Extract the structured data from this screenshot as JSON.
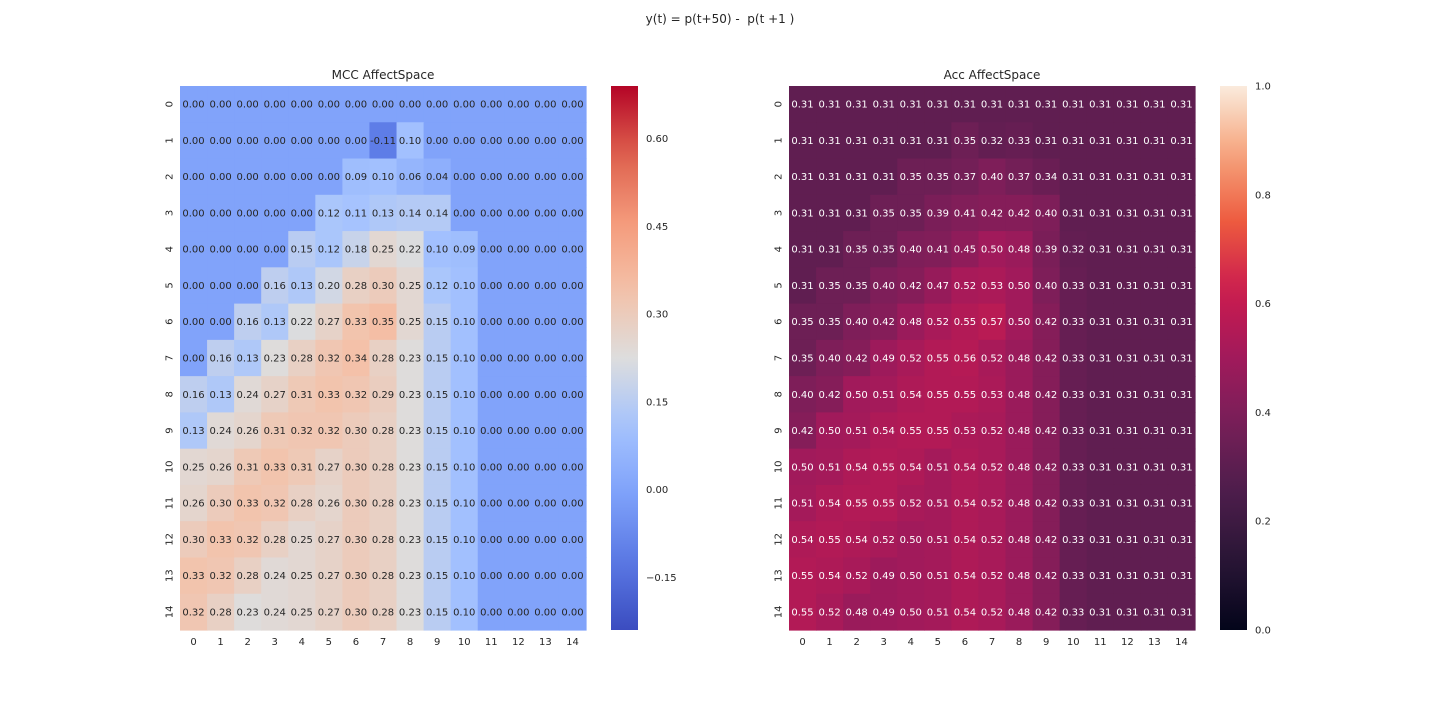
{
  "figure": {
    "suptitle": "y(t) = p(t+50) -  p(t +1 )"
  },
  "chart_data": [
    {
      "type": "heatmap",
      "title": "MCC AffectSpace",
      "xlabel": "",
      "ylabel": "",
      "colormap": "coolwarm",
      "vmin": -0.24,
      "vmax": 0.69,
      "x_tick_labels": [
        "0",
        "1",
        "2",
        "3",
        "4",
        "5",
        "6",
        "7",
        "8",
        "9",
        "10",
        "11",
        "12",
        "13",
        "14"
      ],
      "y_tick_labels": [
        "0",
        "1",
        "2",
        "3",
        "4",
        "5",
        "6",
        "7",
        "8",
        "9",
        "10",
        "11",
        "12",
        "13",
        "14"
      ],
      "colorbar_ticks": [
        -0.15,
        0.0,
        0.15,
        0.3,
        0.45,
        0.6
      ],
      "colorbar_tick_labels": [
        "−0.15",
        "0.00",
        "0.15",
        "0.30",
        "0.45",
        "0.60"
      ],
      "values": [
        [
          0.0,
          0.0,
          0.0,
          0.0,
          0.0,
          0.0,
          0.0,
          0.0,
          0.0,
          0.0,
          0.0,
          0.0,
          0.0,
          0.0,
          0.0
        ],
        [
          0.0,
          0.0,
          0.0,
          0.0,
          0.0,
          0.0,
          0.0,
          -0.11,
          0.1,
          0.0,
          0.0,
          0.0,
          0.0,
          0.0,
          0.0
        ],
        [
          0.0,
          0.0,
          0.0,
          0.0,
          0.0,
          0.0,
          0.09,
          0.1,
          0.06,
          0.04,
          0.0,
          0.0,
          0.0,
          0.0,
          0.0
        ],
        [
          0.0,
          0.0,
          0.0,
          0.0,
          0.0,
          0.12,
          0.11,
          0.13,
          0.14,
          0.14,
          0.0,
          0.0,
          0.0,
          0.0,
          0.0
        ],
        [
          0.0,
          0.0,
          0.0,
          0.0,
          0.15,
          0.12,
          0.18,
          0.25,
          0.22,
          0.1,
          0.09,
          0.0,
          0.0,
          0.0,
          0.0
        ],
        [
          0.0,
          0.0,
          0.0,
          0.16,
          0.13,
          0.2,
          0.28,
          0.3,
          0.25,
          0.12,
          0.1,
          0.0,
          0.0,
          0.0,
          0.0
        ],
        [
          0.0,
          0.0,
          0.16,
          0.13,
          0.22,
          0.27,
          0.33,
          0.35,
          0.25,
          0.15,
          0.1,
          0.0,
          0.0,
          0.0,
          0.0
        ],
        [
          0.0,
          0.16,
          0.13,
          0.23,
          0.28,
          0.32,
          0.34,
          0.28,
          0.23,
          0.15,
          0.1,
          0.0,
          0.0,
          0.0,
          0.0
        ],
        [
          0.16,
          0.13,
          0.24,
          0.27,
          0.31,
          0.33,
          0.32,
          0.29,
          0.23,
          0.15,
          0.1,
          0.0,
          0.0,
          0.0,
          0.0
        ],
        [
          0.13,
          0.24,
          0.26,
          0.31,
          0.32,
          0.32,
          0.3,
          0.28,
          0.23,
          0.15,
          0.1,
          0.0,
          0.0,
          0.0,
          0.0
        ],
        [
          0.25,
          0.26,
          0.31,
          0.33,
          0.31,
          0.27,
          0.3,
          0.28,
          0.23,
          0.15,
          0.1,
          0.0,
          0.0,
          0.0,
          0.0
        ],
        [
          0.26,
          0.3,
          0.33,
          0.32,
          0.28,
          0.26,
          0.3,
          0.28,
          0.23,
          0.15,
          0.1,
          0.0,
          0.0,
          0.0,
          0.0
        ],
        [
          0.3,
          0.33,
          0.32,
          0.28,
          0.25,
          0.27,
          0.3,
          0.28,
          0.23,
          0.15,
          0.1,
          0.0,
          0.0,
          0.0,
          0.0
        ],
        [
          0.33,
          0.32,
          0.28,
          0.24,
          0.25,
          0.27,
          0.3,
          0.28,
          0.23,
          0.15,
          0.1,
          0.0,
          0.0,
          0.0,
          0.0
        ],
        [
          0.32,
          0.28,
          0.23,
          0.24,
          0.25,
          0.27,
          0.3,
          0.28,
          0.23,
          0.15,
          0.1,
          0.0,
          0.0,
          0.0,
          0.0
        ]
      ]
    },
    {
      "type": "heatmap",
      "title": "Acc AffectSpace",
      "xlabel": "",
      "ylabel": "",
      "colormap": "rocket",
      "vmin": 0.0,
      "vmax": 1.0,
      "x_tick_labels": [
        "0",
        "1",
        "2",
        "3",
        "4",
        "5",
        "6",
        "7",
        "8",
        "9",
        "10",
        "11",
        "12",
        "13",
        "14"
      ],
      "y_tick_labels": [
        "0",
        "1",
        "2",
        "3",
        "4",
        "5",
        "6",
        "7",
        "8",
        "9",
        "10",
        "11",
        "12",
        "13",
        "14"
      ],
      "colorbar_ticks": [
        0.0,
        0.2,
        0.4,
        0.6,
        0.8,
        1.0
      ],
      "colorbar_tick_labels": [
        "0.0",
        "0.2",
        "0.4",
        "0.6",
        "0.8",
        "1.0"
      ],
      "values": [
        [
          0.31,
          0.31,
          0.31,
          0.31,
          0.31,
          0.31,
          0.31,
          0.31,
          0.31,
          0.31,
          0.31,
          0.31,
          0.31,
          0.31,
          0.31
        ],
        [
          0.31,
          0.31,
          0.31,
          0.31,
          0.31,
          0.31,
          0.35,
          0.32,
          0.33,
          0.31,
          0.31,
          0.31,
          0.31,
          0.31,
          0.31
        ],
        [
          0.31,
          0.31,
          0.31,
          0.31,
          0.35,
          0.35,
          0.37,
          0.4,
          0.37,
          0.34,
          0.31,
          0.31,
          0.31,
          0.31,
          0.31
        ],
        [
          0.31,
          0.31,
          0.31,
          0.35,
          0.35,
          0.39,
          0.41,
          0.42,
          0.42,
          0.4,
          0.31,
          0.31,
          0.31,
          0.31,
          0.31
        ],
        [
          0.31,
          0.31,
          0.35,
          0.35,
          0.4,
          0.41,
          0.45,
          0.5,
          0.48,
          0.39,
          0.32,
          0.31,
          0.31,
          0.31,
          0.31
        ],
        [
          0.31,
          0.35,
          0.35,
          0.4,
          0.42,
          0.47,
          0.52,
          0.53,
          0.5,
          0.4,
          0.33,
          0.31,
          0.31,
          0.31,
          0.31
        ],
        [
          0.35,
          0.35,
          0.4,
          0.42,
          0.48,
          0.52,
          0.55,
          0.57,
          0.5,
          0.42,
          0.33,
          0.31,
          0.31,
          0.31,
          0.31
        ],
        [
          0.35,
          0.4,
          0.42,
          0.49,
          0.52,
          0.55,
          0.56,
          0.52,
          0.48,
          0.42,
          0.33,
          0.31,
          0.31,
          0.31,
          0.31
        ],
        [
          0.4,
          0.42,
          0.5,
          0.51,
          0.54,
          0.55,
          0.55,
          0.53,
          0.48,
          0.42,
          0.33,
          0.31,
          0.31,
          0.31,
          0.31
        ],
        [
          0.42,
          0.5,
          0.51,
          0.54,
          0.55,
          0.55,
          0.53,
          0.52,
          0.48,
          0.42,
          0.33,
          0.31,
          0.31,
          0.31,
          0.31
        ],
        [
          0.5,
          0.51,
          0.54,
          0.55,
          0.54,
          0.51,
          0.54,
          0.52,
          0.48,
          0.42,
          0.33,
          0.31,
          0.31,
          0.31,
          0.31
        ],
        [
          0.51,
          0.54,
          0.55,
          0.55,
          0.52,
          0.51,
          0.54,
          0.52,
          0.48,
          0.42,
          0.33,
          0.31,
          0.31,
          0.31,
          0.31
        ],
        [
          0.54,
          0.55,
          0.54,
          0.52,
          0.5,
          0.51,
          0.54,
          0.52,
          0.48,
          0.42,
          0.33,
          0.31,
          0.31,
          0.31,
          0.31
        ],
        [
          0.55,
          0.54,
          0.52,
          0.49,
          0.5,
          0.51,
          0.54,
          0.52,
          0.48,
          0.42,
          0.33,
          0.31,
          0.31,
          0.31,
          0.31
        ],
        [
          0.55,
          0.52,
          0.48,
          0.49,
          0.5,
          0.51,
          0.54,
          0.52,
          0.48,
          0.42,
          0.33,
          0.31,
          0.31,
          0.31,
          0.31
        ]
      ]
    }
  ]
}
